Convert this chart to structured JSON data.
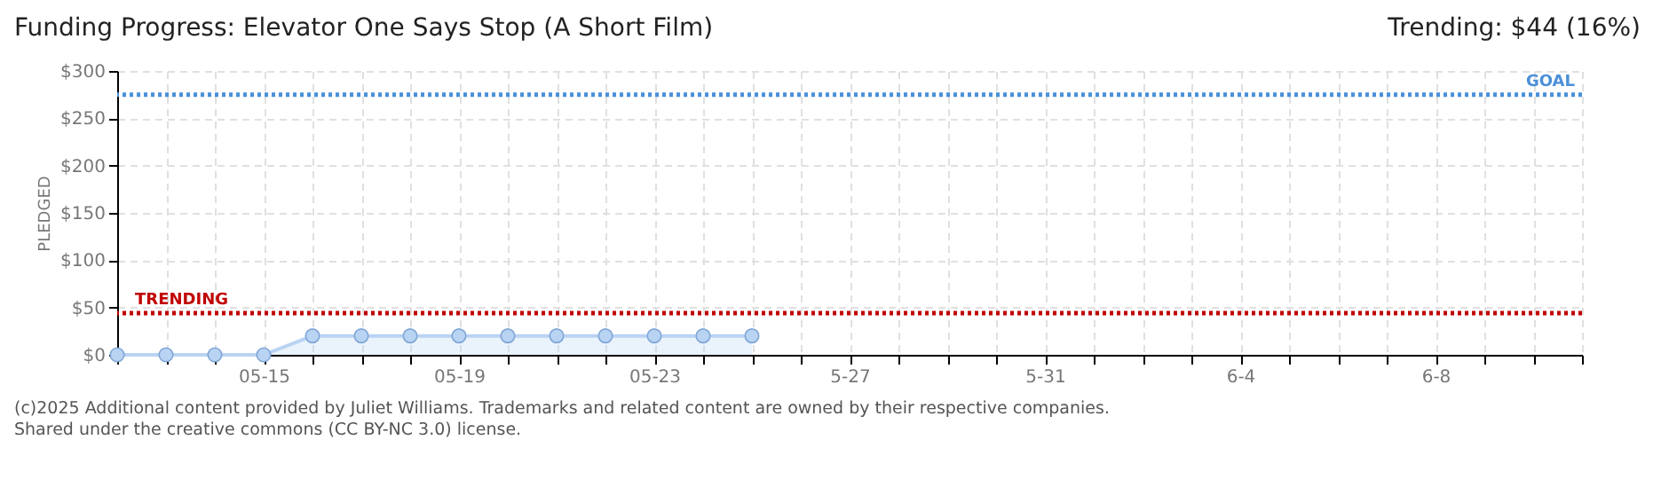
{
  "chart_data": {
    "type": "area",
    "title": "Funding Progress: Elevator One Says Stop (A Short Film)",
    "subtitle": "Trending: $44 (16%)",
    "ylabel": "PLEDGED",
    "x": [
      "2025-05-12",
      "2025-05-13",
      "2025-05-14",
      "2025-05-15",
      "2025-05-16",
      "2025-05-17",
      "2025-05-18",
      "2025-05-19",
      "2025-05-20",
      "2025-05-21",
      "2025-05-22",
      "2025-05-23",
      "2025-05-24",
      "2025-05-25"
    ],
    "series": [
      {
        "color": "#b9d3f3",
        "values": [
          0,
          0,
          0,
          0,
          20,
          20,
          20,
          20,
          20,
          20,
          20,
          20,
          20,
          20
        ]
      }
    ],
    "marker": "circle",
    "xlim": [
      "2025-05-12",
      "2025-06-11"
    ],
    "xticks": [
      {
        "value": "2025-05-12",
        "label": null
      },
      {
        "value": "2025-05-13",
        "label": null
      },
      {
        "value": "2025-05-14",
        "label": null
      },
      {
        "value": "2025-05-15",
        "label": "05-15"
      },
      {
        "value": "2025-05-16",
        "label": null
      },
      {
        "value": "2025-05-17",
        "label": null
      },
      {
        "value": "2025-05-18",
        "label": null
      },
      {
        "value": "2025-05-19",
        "label": "05-19"
      },
      {
        "value": "2025-05-20",
        "label": null
      },
      {
        "value": "2025-05-21",
        "label": null
      },
      {
        "value": "2025-05-22",
        "label": null
      },
      {
        "value": "2025-05-23",
        "label": "05-23"
      },
      {
        "value": "2025-05-24",
        "label": null
      },
      {
        "value": "2025-05-25",
        "label": null
      },
      {
        "value": "2025-05-26",
        "label": null
      },
      {
        "value": "2025-05-27",
        "label": "5-27"
      },
      {
        "value": "2025-05-28",
        "label": null
      },
      {
        "value": "2025-05-29",
        "label": null
      },
      {
        "value": "2025-05-30",
        "label": null
      },
      {
        "value": "2025-05-31",
        "label": "5-31"
      },
      {
        "value": "2025-06-01",
        "label": null
      },
      {
        "value": "2025-06-02",
        "label": null
      },
      {
        "value": "2025-06-03",
        "label": null
      },
      {
        "value": "2025-06-04",
        "label": "6-4"
      },
      {
        "value": "2025-06-05",
        "label": null
      },
      {
        "value": "2025-06-06",
        "label": null
      },
      {
        "value": "2025-06-07",
        "label": null
      },
      {
        "value": "2025-06-08",
        "label": "6-8"
      },
      {
        "value": "2025-06-09",
        "label": null
      },
      {
        "value": "2025-06-10",
        "label": null
      },
      {
        "value": "2025-06-11",
        "label": null
      }
    ],
    "ylim": [
      0,
      300
    ],
    "yticks": [
      {
        "value": 0,
        "label": "$0"
      },
      {
        "value": 50,
        "label": "$50"
      },
      {
        "value": 100,
        "label": "$100"
      },
      {
        "value": 150,
        "label": "$150"
      },
      {
        "value": 200,
        "label": "$200"
      },
      {
        "value": 250,
        "label": "$250"
      },
      {
        "value": 300,
        "label": "$300"
      }
    ],
    "grid": true,
    "ref_lines": [
      {
        "axis": "y",
        "value": 275,
        "label": "GOAL",
        "color": "#4a90d9",
        "line_style": "dotted"
      },
      {
        "axis": "y",
        "value": 44,
        "label": "TRENDING",
        "color": "#c00000",
        "line_style": "dotted"
      }
    ],
    "annotations": [
      "(c)2025 Additional content provided by Juliet Williams. Trademarks and related content are owned by their respective companies.",
      "Shared under the creative commons (CC BY-NC 3.0) license."
    ]
  }
}
